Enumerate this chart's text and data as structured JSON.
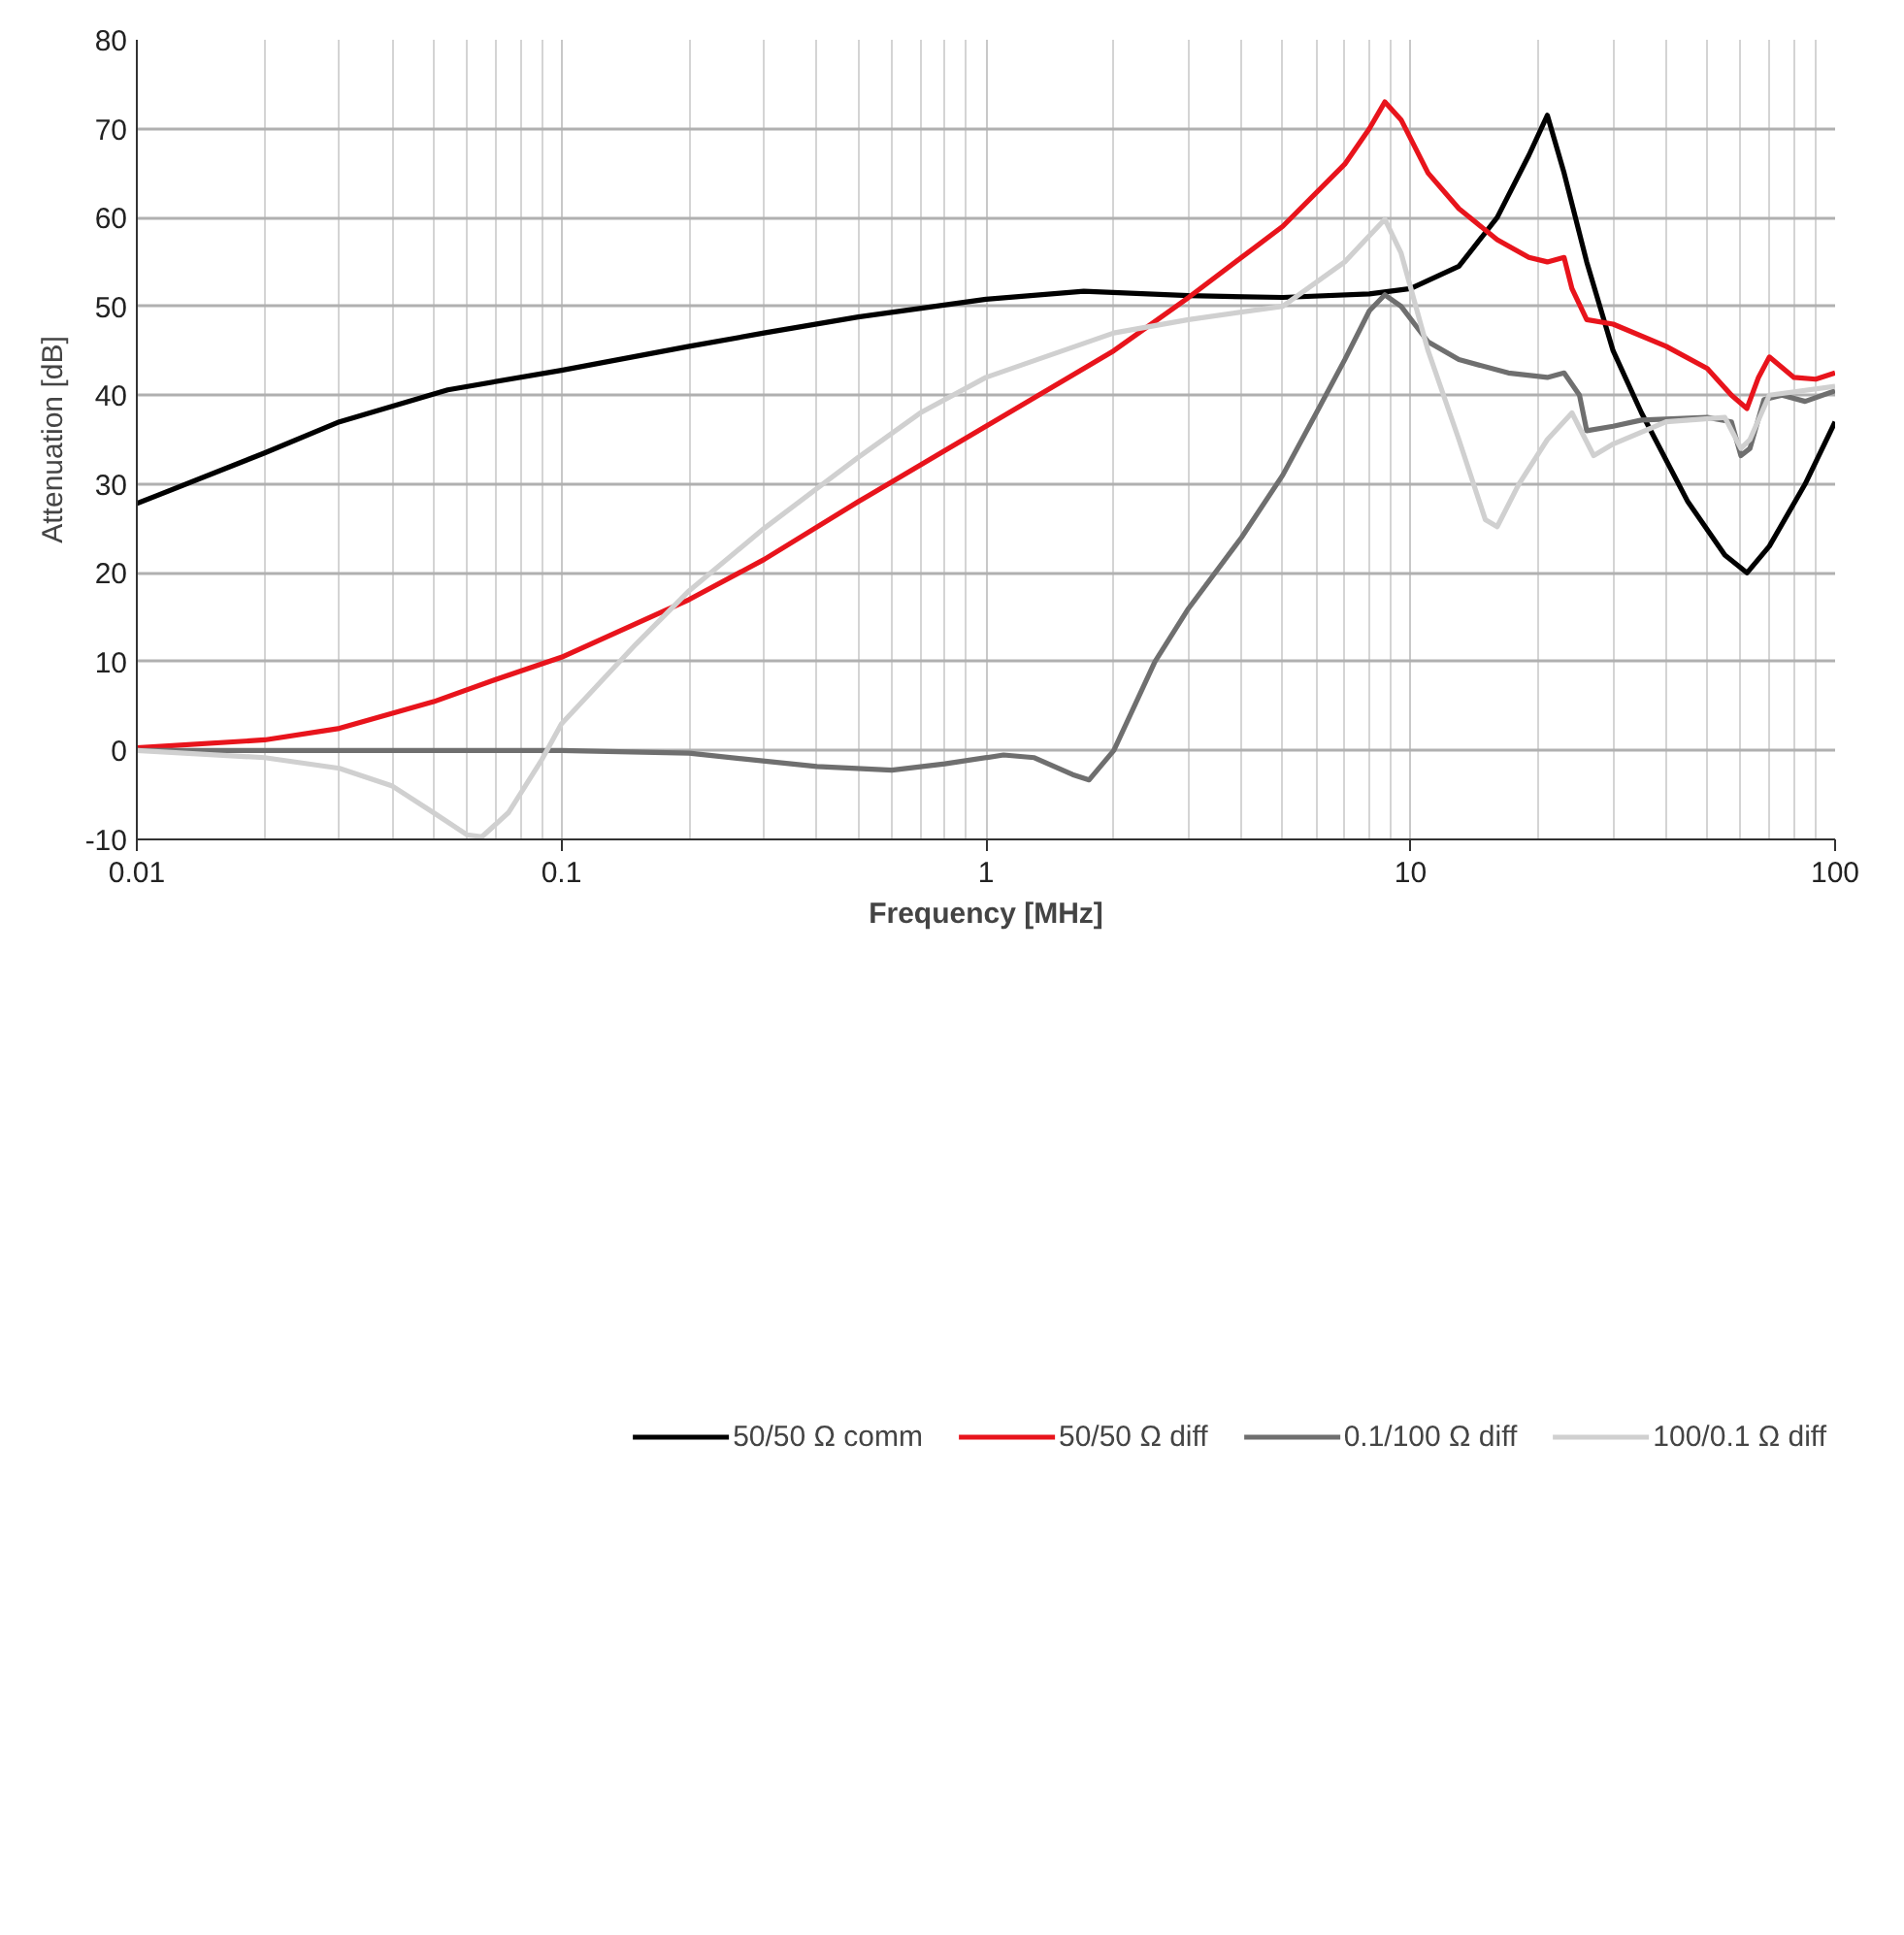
{
  "chart_data": {
    "type": "line",
    "xlabel": "Frequency [MHz]",
    "ylabel": "Attenuation [dB]",
    "log": "x",
    "grid": true,
    "legend": "bottom",
    "marker": "none",
    "line_style": "solid",
    "xlim": [
      0.01,
      100
    ],
    "xticks": [
      0.01,
      0.1,
      1,
      10,
      100
    ],
    "ylim": [
      -10,
      80
    ],
    "yticks": [
      -10,
      0,
      10,
      20,
      30,
      40,
      50,
      60,
      70,
      80
    ],
    "series": [
      {
        "name": "50/50 Ω comm",
        "color": "#000000",
        "x": [
          0.01,
          0.02,
          0.03,
          0.054,
          0.1,
          0.2,
          0.3,
          0.5,
          1,
          1.7,
          3,
          5,
          8,
          10,
          13,
          16,
          19,
          21,
          23,
          26,
          30,
          35,
          45,
          55,
          62,
          70,
          85,
          100
        ],
        "values": [
          27.8,
          33.5,
          37,
          40.6,
          42.8,
          45.5,
          47,
          48.8,
          50.8,
          51.7,
          51.2,
          51,
          51.4,
          52,
          54.5,
          60,
          67,
          71.5,
          65,
          55,
          45,
          38,
          28,
          22,
          20,
          23,
          30,
          37
        ]
      },
      {
        "name": "50/50 Ω diff",
        "color": "#e8141c",
        "x": [
          0.01,
          0.02,
          0.03,
          0.05,
          0.07,
          0.1,
          0.2,
          0.3,
          0.5,
          1,
          2,
          3,
          5,
          7,
          8,
          8.7,
          9.5,
          11,
          13,
          16,
          19,
          21,
          23,
          24,
          26,
          30,
          40,
          50,
          57,
          62,
          66,
          70,
          80,
          90,
          100
        ],
        "values": [
          0.3,
          1.2,
          2.5,
          5.5,
          8,
          10.5,
          17,
          21.5,
          28,
          36.5,
          45,
          51,
          59,
          66,
          70,
          73,
          71,
          65,
          61,
          57.5,
          55.5,
          55,
          55.5,
          52,
          48.5,
          48,
          45.5,
          43,
          40,
          38.5,
          42,
          44.3,
          42,
          41.8,
          42.5
        ]
      },
      {
        "name": "0.1/100 Ω diff",
        "color": "#6f6f6f",
        "x": [
          0.01,
          0.1,
          0.2,
          0.4,
          0.6,
          0.8,
          1.1,
          1.3,
          1.6,
          1.75,
          2,
          2.5,
          3,
          4,
          5,
          6,
          7,
          8,
          8.7,
          9.5,
          11,
          13,
          17,
          21,
          23,
          25,
          26,
          30,
          35,
          50,
          57,
          60,
          63,
          68,
          75,
          85,
          100
        ],
        "values": [
          0,
          0,
          -0.3,
          -1.8,
          -2.2,
          -1.5,
          -0.5,
          -0.8,
          -2.7,
          -3.3,
          0,
          10,
          16,
          24,
          31,
          38,
          44,
          49.5,
          51.3,
          50,
          46,
          44,
          42.5,
          42,
          42.5,
          40,
          36,
          36.5,
          37.2,
          37.5,
          37,
          33.2,
          34,
          39.5,
          40,
          39.3,
          40.5
        ]
      },
      {
        "name": "100/0.1 Ω diff",
        "color": "#d0d0d0",
        "x": [
          0.01,
          0.02,
          0.03,
          0.04,
          0.05,
          0.06,
          0.065,
          0.075,
          0.09,
          0.1,
          0.15,
          0.2,
          0.3,
          0.5,
          0.7,
          1,
          2,
          3,
          5,
          7,
          8.7,
          9.5,
          11,
          13,
          15,
          16,
          18,
          21,
          24,
          27,
          30,
          40,
          55,
          60,
          63,
          70,
          100
        ],
        "values": [
          0,
          -0.8,
          -2,
          -4,
          -7,
          -9.5,
          -9.7,
          -7,
          -1,
          3,
          12,
          18,
          25,
          33,
          38,
          42,
          47,
          48.5,
          50,
          55,
          59.8,
          56,
          45,
          35,
          26,
          25.2,
          30,
          35,
          38,
          33.2,
          34.5,
          37,
          37.5,
          34,
          35,
          40,
          41
        ]
      }
    ]
  }
}
